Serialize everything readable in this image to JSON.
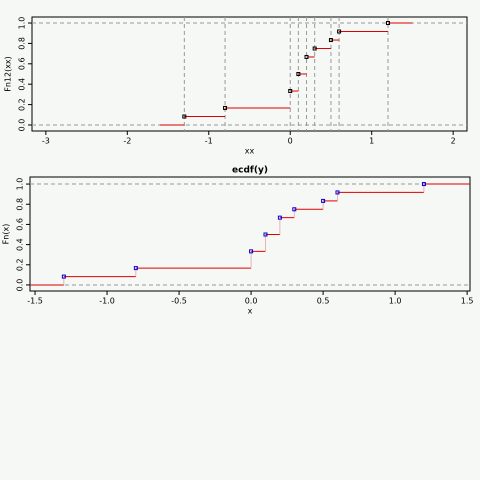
{
  "chart_data": [
    {
      "type": "step",
      "xlabel": "xx",
      "ylabel": "Fn12(xx)",
      "x": [
        -1.3,
        -0.8,
        0.0,
        0.1,
        0.2,
        0.3,
        0.5,
        0.6,
        1.2
      ],
      "values": [
        0.083,
        0.167,
        0.333,
        0.5,
        0.667,
        0.75,
        0.833,
        0.917,
        1.0
      ],
      "color": "#dd0000",
      "point_color": "#000000",
      "xlim": [
        -3.17,
        2.17
      ],
      "xticks": [
        -3,
        -2,
        -1,
        0,
        1,
        2
      ],
      "ylim": [
        -0.059,
        1.059
      ],
      "yticks": [
        {
          "value": 0,
          "label": "0.0"
        },
        {
          "value": 0.2,
          "label": "0.2"
        },
        {
          "value": 0.4,
          "label": "0.4"
        },
        {
          "value": 0.6,
          "label": "0.6"
        },
        {
          "value": 0.8,
          "label": "0.8"
        },
        {
          "value": 1,
          "label": "1.0"
        }
      ],
      "vertical_guides": true,
      "verticals": false
    },
    {
      "type": "step",
      "title": "ecdf(y)",
      "xlabel": "x",
      "ylabel": "Fn(x)",
      "x": [
        -1.3,
        -0.8,
        0.0,
        0.1,
        0.2,
        0.3,
        0.5,
        0.6,
        1.2
      ],
      "values": [
        0.083,
        0.167,
        0.333,
        0.5,
        0.667,
        0.75,
        0.833,
        0.917,
        1.0
      ],
      "color": "#dd0000",
      "point_color": "#0000dd",
      "xlim": [
        -1.535,
        1.52
      ],
      "xticks": [
        -1.5,
        {
          "value": -1,
          "label": "-1.0"
        },
        -0.5,
        {
          "value": 0,
          "label": "0.0"
        },
        0.5,
        {
          "value": 1,
          "label": "1.0"
        },
        1.5
      ],
      "ylim": [
        -0.06,
        1.07
      ],
      "yticks": [
        {
          "value": 0,
          "label": "0.0"
        },
        {
          "value": 0.2,
          "label": "0.2"
        },
        {
          "value": 0.4,
          "label": "0.4"
        },
        {
          "value": 0.6,
          "label": "0.6"
        },
        {
          "value": 0.8,
          "label": "0.8"
        },
        {
          "value": 1,
          "label": "1.0"
        }
      ],
      "vertical_guides": false,
      "verticals": true
    }
  ]
}
